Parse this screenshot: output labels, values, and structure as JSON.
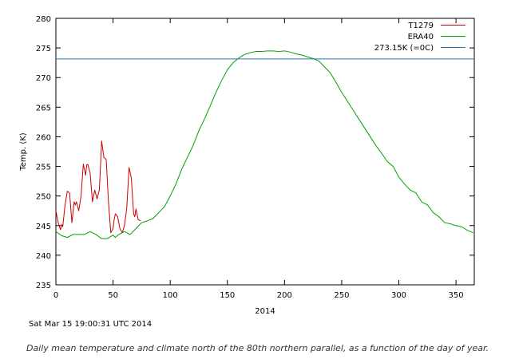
{
  "chart_data": {
    "type": "line",
    "xlabel": "2014",
    "ylabel": "Temp. (K)",
    "xlim": [
      0,
      366
    ],
    "ylim": [
      235,
      280
    ],
    "xticks": [
      0,
      50,
      100,
      150,
      200,
      250,
      300,
      350
    ],
    "yticks": [
      235,
      240,
      245,
      250,
      255,
      260,
      265,
      270,
      275,
      280
    ],
    "grid": false,
    "legend_position": "top-right",
    "series": [
      {
        "name": "T1279",
        "color": "#cc0000",
        "x": [
          0,
          2,
          4,
          5,
          6,
          8,
          10,
          12,
          14,
          16,
          17,
          18,
          20,
          22,
          24,
          26,
          27,
          28,
          30,
          32,
          34,
          36,
          38,
          39,
          40,
          42,
          44,
          46,
          48,
          50,
          51,
          52,
          54,
          56,
          58,
          60,
          62,
          64,
          66,
          68,
          69,
          70,
          72,
          74
        ],
        "y": [
          247.5,
          245.5,
          244.3,
          245.2,
          244.8,
          248.5,
          250.8,
          250.5,
          245.5,
          249.0,
          248.5,
          249.0,
          247.5,
          250.0,
          255.4,
          253.5,
          255.3,
          255.3,
          253.8,
          249.0,
          251.0,
          249.5,
          251.0,
          255.0,
          259.3,
          256.5,
          256.2,
          249.0,
          243.8,
          244.5,
          246.0,
          247.0,
          246.5,
          244.5,
          243.8,
          245.0,
          248.0,
          254.8,
          253.0,
          247.0,
          246.5,
          247.8,
          246.0,
          245.8
        ]
      },
      {
        "name": "ERA40",
        "color": "#00a000",
        "x": [
          0,
          5,
          10,
          15,
          20,
          25,
          30,
          35,
          40,
          45,
          50,
          52,
          55,
          60,
          65,
          70,
          75,
          80,
          85,
          90,
          95,
          100,
          105,
          110,
          115,
          120,
          125,
          130,
          135,
          140,
          145,
          150,
          155,
          160,
          165,
          170,
          175,
          180,
          185,
          190,
          195,
          200,
          205,
          210,
          215,
          220,
          225,
          230,
          235,
          240,
          245,
          250,
          255,
          260,
          265,
          270,
          275,
          280,
          285,
          290,
          295,
          300,
          305,
          310,
          315,
          320,
          325,
          330,
          335,
          340,
          345,
          350,
          355,
          360,
          365
        ],
        "y": [
          244.0,
          243.3,
          243.0,
          243.5,
          243.5,
          243.5,
          244.0,
          243.5,
          242.8,
          242.8,
          243.4,
          243.0,
          243.5,
          244.0,
          243.5,
          244.5,
          245.5,
          245.8,
          246.2,
          247.2,
          248.2,
          250.0,
          252.0,
          254.5,
          256.5,
          258.5,
          261.0,
          263.0,
          265.2,
          267.5,
          269.5,
          271.3,
          272.5,
          273.3,
          273.9,
          274.2,
          274.4,
          274.4,
          274.5,
          274.5,
          274.4,
          274.5,
          274.3,
          274.0,
          273.8,
          273.5,
          273.2,
          272.8,
          271.8,
          270.8,
          269.2,
          267.5,
          266.0,
          264.5,
          263.0,
          261.5,
          260.0,
          258.5,
          257.2,
          255.8,
          255.0,
          253.2,
          252.0,
          251.0,
          250.5,
          249.0,
          248.5,
          247.2,
          246.5,
          245.5,
          245.3,
          245.0,
          244.8,
          244.2,
          243.8
        ]
      },
      {
        "name": "273.15K (=0C)",
        "color": "#1f77b4",
        "x": [
          0,
          366
        ],
        "y": [
          273.15,
          273.15
        ]
      }
    ],
    "annotations": [
      {
        "text": "Sat Mar 15 19:00:31 UTC 2014"
      }
    ]
  },
  "caption": "Daily mean temperature and climate north of the 80th northern parallel, as a function of the day of year."
}
